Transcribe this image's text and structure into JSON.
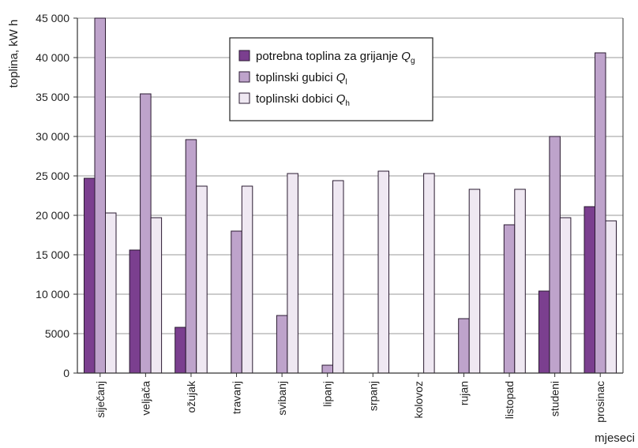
{
  "chart_data": {
    "type": "bar",
    "ylabel": "toplina, kW h",
    "xlabel": "mjeseci",
    "ylim": [
      0,
      45000
    ],
    "yticks": [
      0,
      5000,
      10000,
      15000,
      20000,
      25000,
      30000,
      35000,
      40000,
      45000
    ],
    "ytick_labels": [
      "0",
      "5000",
      "10 000",
      "15 000",
      "20 000",
      "25 000",
      "30 000",
      "35 000",
      "40 000",
      "45 000"
    ],
    "grid": true,
    "legend_position": "top-center",
    "categories": [
      "siječanj",
      "veljača",
      "ožujak",
      "travanj",
      "svibanj",
      "lipanj",
      "srpanj",
      "kolovoz",
      "rujan",
      "listopad",
      "studeni",
      "prosinac"
    ],
    "series": [
      {
        "name": "potrebna toplina za grijanje Qg",
        "legend_text": "potrebna toplina za grijanje",
        "symbol": "Q",
        "subscript": "g",
        "color": "#7b3f8f",
        "values": [
          24700,
          15600,
          5800,
          0,
          0,
          0,
          0,
          0,
          0,
          0,
          10400,
          21100
        ]
      },
      {
        "name": "toplinski gubici Ql",
        "legend_text": "toplinski gubici",
        "symbol": "Q",
        "subscript": "l",
        "color": "#bea3cb",
        "values": [
          45000,
          35400,
          29600,
          18000,
          7300,
          1000,
          0,
          0,
          6900,
          18800,
          30000,
          40600
        ]
      },
      {
        "name": "toplinski dobici Qh",
        "legend_text": "toplinski dobici",
        "symbol": "Q",
        "subscript": "h",
        "color": "#efe8f2",
        "values": [
          20300,
          19700,
          23700,
          23700,
          25300,
          24400,
          25600,
          25300,
          23300,
          23300,
          19700,
          19300
        ]
      }
    ]
  }
}
